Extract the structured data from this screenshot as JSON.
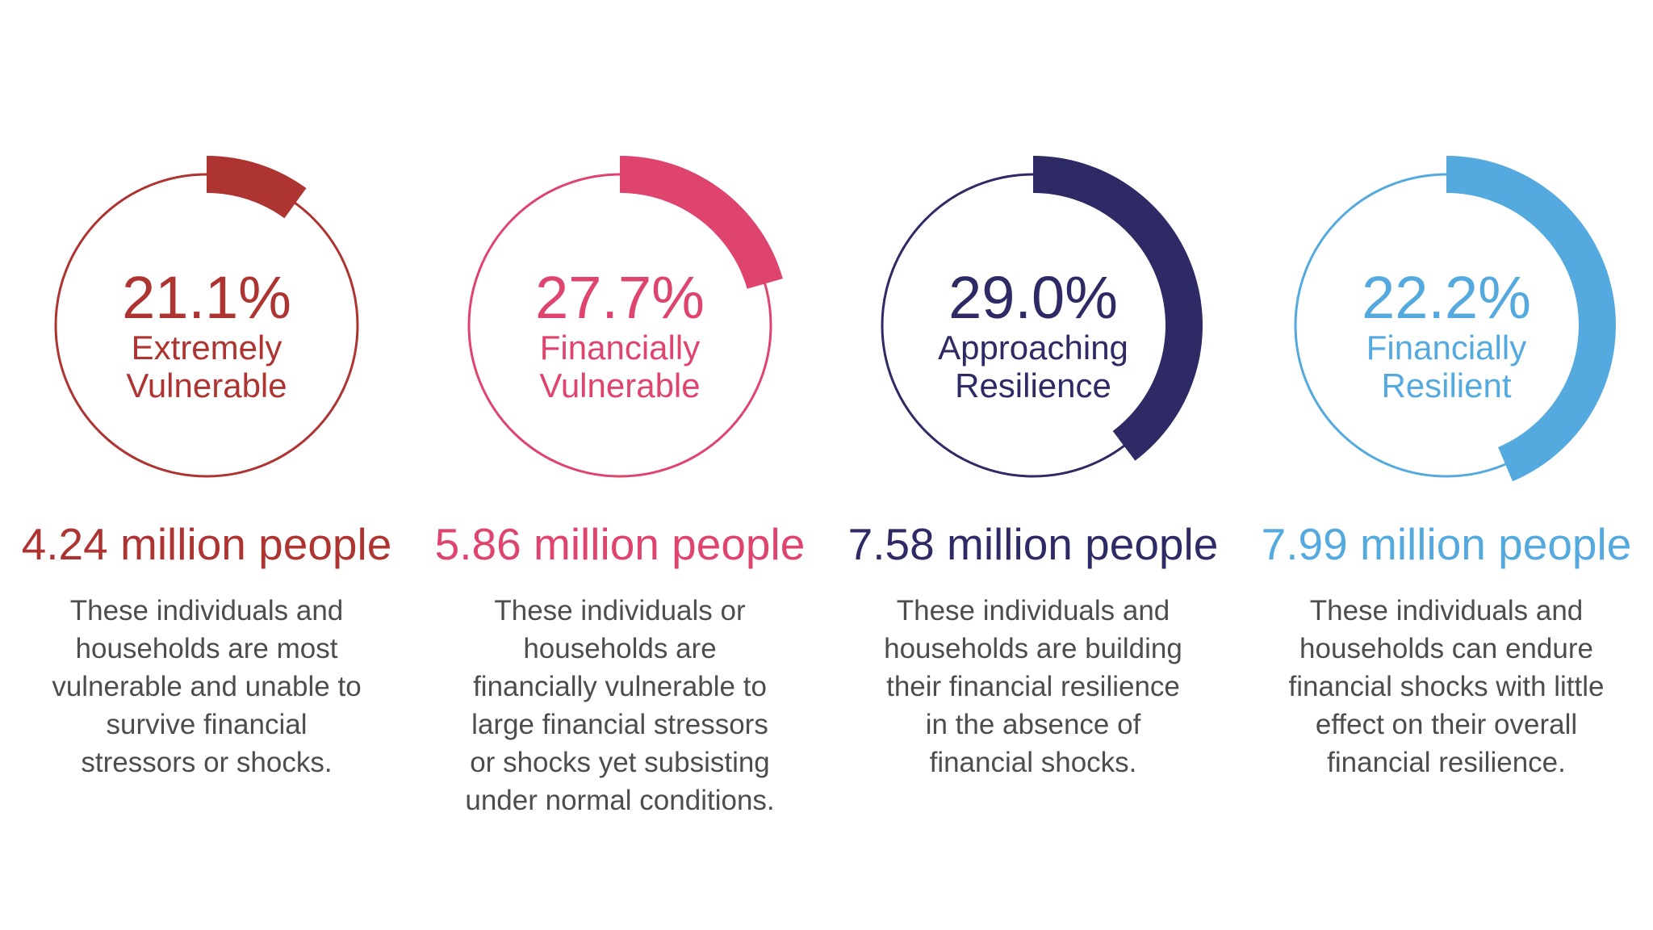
{
  "chart_data": {
    "type": "pie",
    "variant": "donut-gauge-row",
    "categories": [
      "Extremely Vulnerable",
      "Financially Vulnerable",
      "Approaching Resilience",
      "Financially Resilient"
    ],
    "series": [
      {
        "name": "share_percent",
        "values": [
          21.1,
          27.7,
          29.0,
          22.2
        ]
      },
      {
        "name": "people_millions",
        "values": [
          4.24,
          5.86,
          7.58,
          7.99
        ]
      }
    ],
    "colors": [
      "#ae3432",
      "#de446d",
      "#2d2a66",
      "#54a9de"
    ],
    "legend_position": "none",
    "grid": false
  },
  "charts": [
    {
      "pct": "21.1%",
      "label_line1": "Extremely",
      "label_line2": "Vulnerable",
      "millions": "4.24 million people",
      "desc": "These individuals and households are most vulnerable and unable to survive financial stressors or shocks.",
      "color": "#ae3432",
      "arc_deg": 36
    },
    {
      "pct": "27.7%",
      "label_line1": "Financially",
      "label_line2": "Vulnerable",
      "millions": "5.86 million people",
      "desc": "These individuals or households are financially vulnerable to large financial stressors or shocks yet subsisting under normal conditions.",
      "color": "#de446d",
      "arc_deg": 74
    },
    {
      "pct": "29.0%",
      "label_line1": "Approaching",
      "label_line2": "Resilience",
      "millions": "7.58 million people",
      "desc": "These individuals and households are building their financial resilience in the absence of financial shocks.",
      "color": "#2d2a66",
      "arc_deg": 143
    },
    {
      "pct": "22.2%",
      "label_line1": "Financially",
      "label_line2": "Resilient",
      "millions": "7.99 million people",
      "desc": "These individuals and households can endure financial shocks with little effect on their overall financial resilience.",
      "color": "#54a9de",
      "arc_deg": 157
    }
  ]
}
